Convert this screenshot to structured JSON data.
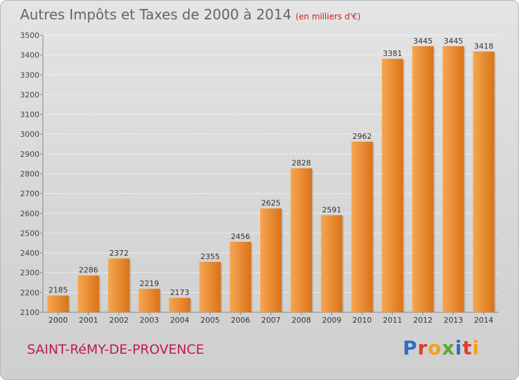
{
  "header": {
    "title": "Autres Impôts et Taxes de 2000 à 2014",
    "unit": "(en milliers d'€)"
  },
  "footer": {
    "town": "SAINT-RéMY-DE-PROVENCE",
    "brand_letters": [
      "P",
      "r",
      "o",
      "x",
      "i",
      "t",
      "i"
    ]
  },
  "colors": {
    "bar_light": "#f7a652",
    "bar_dark": "#d97318",
    "title": "#666666",
    "town": "#c2185b",
    "grid": "#ffffff"
  },
  "chart_data": {
    "type": "bar",
    "title": "Autres Impôts et Taxes de 2000 à 2014",
    "subtitle": "(en milliers d'€)",
    "xlabel": "",
    "ylabel": "",
    "categories": [
      "2000",
      "2001",
      "2002",
      "2003",
      "2004",
      "2005",
      "2006",
      "2007",
      "2008",
      "2009",
      "2010",
      "2011",
      "2012",
      "2013",
      "2014"
    ],
    "values": [
      2185,
      2286,
      2372,
      2219,
      2173,
      2355,
      2456,
      2625,
      2828,
      2591,
      2962,
      3381,
      3445,
      3445,
      3418
    ],
    "ylim": [
      2100,
      3500
    ],
    "yticks": [
      2100,
      2200,
      2300,
      2400,
      2500,
      2600,
      2700,
      2800,
      2900,
      3000,
      3100,
      3200,
      3300,
      3400,
      3500
    ],
    "grid": true,
    "data_labels": true,
    "legend": "none"
  }
}
